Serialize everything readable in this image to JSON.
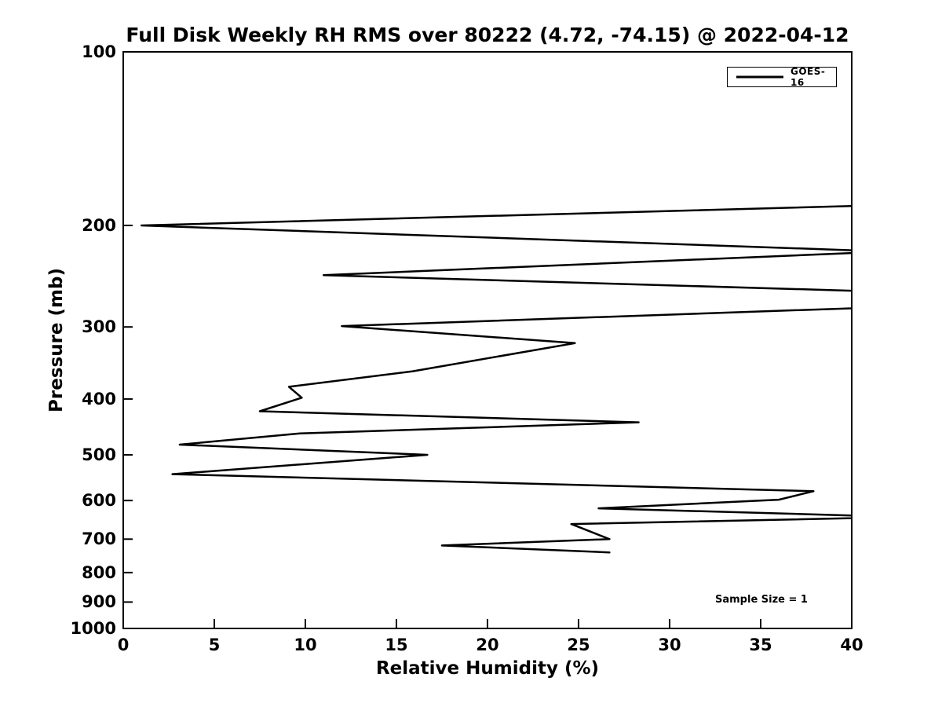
{
  "chart_data": {
    "type": "line",
    "title": "Full Disk Weekly RH RMS over 80222 (4.72, -74.15) @ 2022-04-12",
    "xlabel": "Relative Humidity (%)",
    "ylabel": "Pressure (mb)",
    "xlim": [
      0,
      40
    ],
    "ylim_pressure_mb": [
      1000,
      100
    ],
    "yscale": "log",
    "y_inverted": true,
    "xticks": [
      0,
      5,
      10,
      15,
      20,
      25,
      30,
      35,
      40
    ],
    "yticks": [
      100,
      200,
      300,
      400,
      500,
      600,
      700,
      800,
      900,
      1000
    ],
    "grid": false,
    "legend_position": "upper right",
    "annotation": {
      "text": "Sample Size = 1"
    },
    "series": [
      {
        "name": "GOES-16",
        "color": "#000000",
        "line_width": 2.5,
        "points_note": "each point is [rh_rms_percent, pressure_mb]; rh values above 40 are off-scale estimates, line is clipped at the axis edge",
        "points": [
          [
            43.0,
            184
          ],
          [
            1.0,
            200
          ],
          [
            42.0,
            222
          ],
          [
            11.0,
            244
          ],
          [
            55.0,
            268
          ],
          [
            12.0,
            299
          ],
          [
            24.8,
            320
          ],
          [
            15.9,
            358
          ],
          [
            9.1,
            381
          ],
          [
            9.8,
            398
          ],
          [
            7.5,
            420
          ],
          [
            28.3,
            439
          ],
          [
            9.7,
            459
          ],
          [
            3.1,
            480
          ],
          [
            16.7,
            500
          ],
          [
            2.7,
            540
          ],
          [
            37.9,
            578
          ],
          [
            36.0,
            598
          ],
          [
            26.1,
            619
          ],
          [
            43.0,
            641
          ],
          [
            24.6,
            659
          ],
          [
            26.7,
            700
          ],
          [
            17.5,
            718
          ],
          [
            26.7,
            738
          ]
        ]
      }
    ]
  },
  "colors": {
    "background": "#ffffff",
    "foreground": "#000000",
    "line": "#000000"
  }
}
